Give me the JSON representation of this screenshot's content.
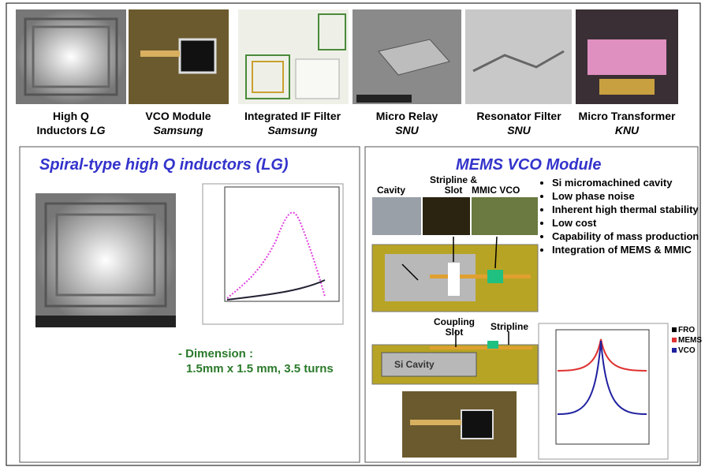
{
  "top_row": [
    {
      "lines": [
        "High Q",
        "Inductors"
      ],
      "maker": "LG"
    },
    {
      "lines": [
        "VCO Module"
      ],
      "maker": "Samsung"
    },
    {
      "lines": [
        "Integrated IF Filter"
      ],
      "maker": "Samsung"
    },
    {
      "lines": [
        "Micro Relay"
      ],
      "maker": "SNU"
    },
    {
      "lines": [
        "Resonator Filter"
      ],
      "maker": "SNU"
    },
    {
      "lines": [
        "Micro Transformer"
      ],
      "maker": "KNU"
    }
  ],
  "left_panel": {
    "title": "Spiral-type high Q inductors (LG)",
    "dimension_label": "- Dimension :",
    "dimension_value": "1.5mm x 1.5 mm, 3.5 turns"
  },
  "right_panel": {
    "title": "MEMS VCO Module",
    "labels": {
      "cavity": "Cavity",
      "stripline_slot": [
        "Stripline &",
        "Slot"
      ],
      "mmic_vco": "MMIC VCO",
      "coupling_slot": [
        "Coupling",
        "Slot"
      ],
      "stripline": "Stripline",
      "si_cavity": "Si Cavity"
    },
    "bullets": [
      "Si micromachined cavity",
      "Low phase noise",
      "Inherent high thermal stability",
      "Low cost",
      "Capability of mass production",
      "Integration of MEMS & MMIC"
    ],
    "chart_legend": [
      "FRO",
      "MEMS",
      "VCO"
    ]
  }
}
